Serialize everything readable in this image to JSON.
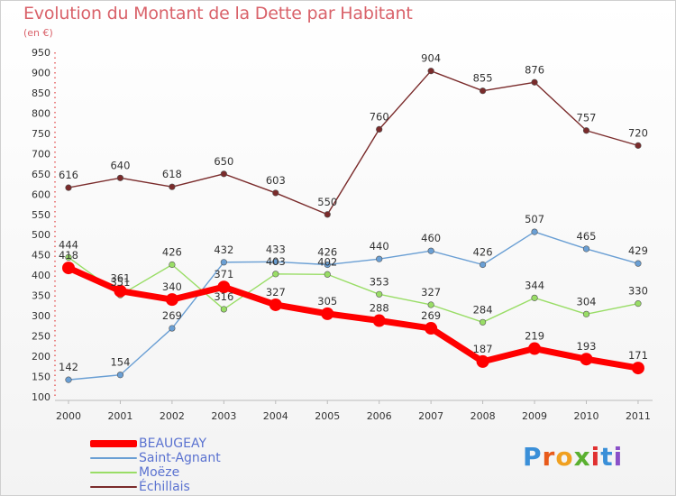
{
  "title": "Evolution du Montant de la Dette par Habitant",
  "subtitle": "(en €)",
  "logo": "Proxiti",
  "chart_data": {
    "type": "line",
    "x": [
      "2000",
      "2001",
      "2002",
      "2003",
      "2004",
      "2005",
      "2006",
      "2007",
      "2008",
      "2009",
      "2010",
      "2011"
    ],
    "ylim": [
      100,
      950
    ],
    "yticks": [
      100,
      150,
      200,
      250,
      300,
      350,
      400,
      450,
      500,
      550,
      600,
      650,
      700,
      750,
      800,
      850,
      900,
      950
    ],
    "grid": false,
    "legend": "bottom-left",
    "series": [
      {
        "name": "BEAUGEAY",
        "color": "#ff0000",
        "width": 7,
        "values": [
          418,
          361,
          340,
          371,
          327,
          305,
          288,
          269,
          187,
          219,
          193,
          171
        ]
      },
      {
        "name": "Saint-Agnant",
        "color": "#6a9fd4",
        "width": 1.4,
        "values": [
          142,
          154,
          269,
          432,
          433,
          426,
          440,
          460,
          426,
          507,
          465,
          429
        ]
      },
      {
        "name": "Moëze",
        "color": "#99dd66",
        "width": 1.4,
        "values": [
          444,
          351,
          426,
          316,
          403,
          402,
          353,
          327,
          284,
          344,
          304,
          330
        ]
      },
      {
        "name": "Échillais",
        "color": "#7a2b2b",
        "width": 1.4,
        "values": [
          616,
          640,
          618,
          650,
          603,
          550,
          760,
          904,
          855,
          876,
          757,
          720
        ]
      }
    ]
  }
}
